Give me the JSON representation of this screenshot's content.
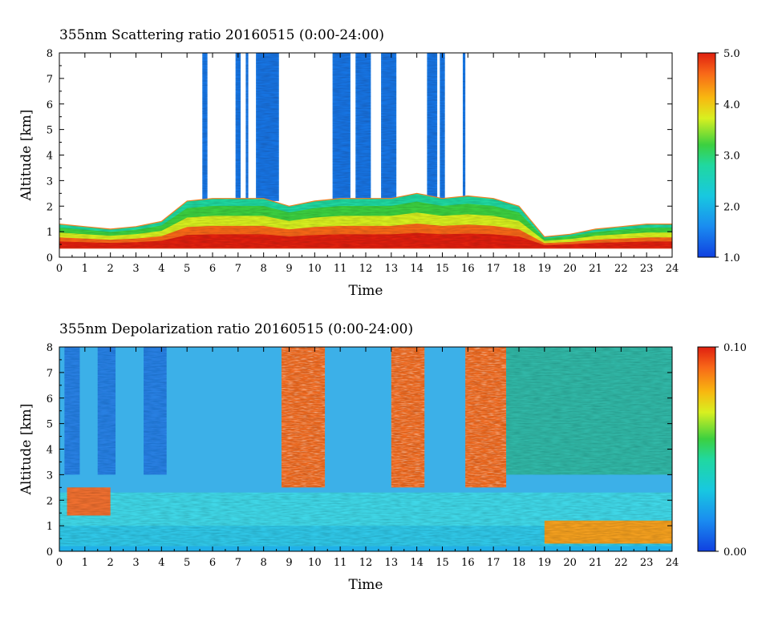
{
  "chart_data": [
    {
      "type": "heatmap",
      "title": "355nm Scattering ratio  20160515 (0:00-24:00)",
      "xlabel": "Time",
      "ylabel": "Altitude [km]",
      "xlim": [
        0,
        24
      ],
      "ylim": [
        0,
        8
      ],
      "x_ticks": [
        "0",
        "1",
        "2",
        "3",
        "4",
        "5",
        "6",
        "7",
        "8",
        "9",
        "10",
        "11",
        "12",
        "13",
        "14",
        "15",
        "16",
        "17",
        "18",
        "19",
        "20",
        "21",
        "22",
        "23",
        "24"
      ],
      "y_ticks": [
        "0",
        "1",
        "2",
        "3",
        "4",
        "5",
        "6",
        "7",
        "8"
      ],
      "colorbar": {
        "min": 1.0,
        "max": 5.0,
        "tick_labels": [
          "1.0",
          "2.0",
          "3.0",
          "4.0",
          "5.0"
        ]
      },
      "features": {
        "boundary_layer_top_km": [
          [
            0,
            1.3
          ],
          [
            1,
            1.2
          ],
          [
            2,
            1.1
          ],
          [
            3,
            1.2
          ],
          [
            4,
            1.4
          ],
          [
            5,
            2.2
          ],
          [
            6,
            2.3
          ],
          [
            7,
            2.3
          ],
          [
            8,
            2.3
          ],
          [
            9,
            2.0
          ],
          [
            10,
            2.2
          ],
          [
            11,
            2.3
          ],
          [
            12,
            2.3
          ],
          [
            13,
            2.3
          ],
          [
            14,
            2.5
          ],
          [
            15,
            2.3
          ],
          [
            16,
            2.4
          ],
          [
            17,
            2.3
          ],
          [
            18,
            2.0
          ],
          [
            19,
            0.8
          ],
          [
            20,
            0.9
          ],
          [
            21,
            1.1
          ],
          [
            22,
            1.2
          ],
          [
            23,
            1.3
          ],
          [
            24,
            1.3
          ]
        ],
        "columns_to_top": [
          [
            5.6,
            5.8
          ],
          [
            6.9,
            7.1
          ],
          [
            7.3,
            7.4
          ],
          [
            7.7,
            8.6
          ],
          [
            10.7,
            11.4
          ],
          [
            11.6,
            12.2
          ],
          [
            12.6,
            13.2
          ],
          [
            14.4,
            14.8
          ],
          [
            14.9,
            15.1
          ],
          [
            15.8,
            15.9
          ]
        ]
      }
    },
    {
      "type": "heatmap",
      "title": "355nm Depolarization ratio  20160515 (0:00-24:00)",
      "xlabel": "Time",
      "ylabel": "Altitude [km]",
      "xlim": [
        0,
        24
      ],
      "ylim": [
        0,
        8
      ],
      "x_ticks": [
        "0",
        "1",
        "2",
        "3",
        "4",
        "5",
        "6",
        "7",
        "8",
        "9",
        "10",
        "11",
        "12",
        "13",
        "14",
        "15",
        "16",
        "17",
        "18",
        "19",
        "20",
        "21",
        "22",
        "23",
        "24"
      ],
      "y_ticks": [
        "0",
        "1",
        "2",
        "3",
        "4",
        "5",
        "6",
        "7",
        "8"
      ],
      "colorbar": {
        "min": 0.0,
        "max": 0.1,
        "tick_labels": [
          "0.00",
          "0.10"
        ]
      },
      "features": {
        "high_depol_columns": [
          [
            8.7,
            10.4
          ],
          [
            13.0,
            14.3
          ],
          [
            15.9,
            17.5
          ]
        ],
        "high_depol_low_layer": [
          [
            19.0,
            24.0
          ]
        ]
      }
    }
  ]
}
